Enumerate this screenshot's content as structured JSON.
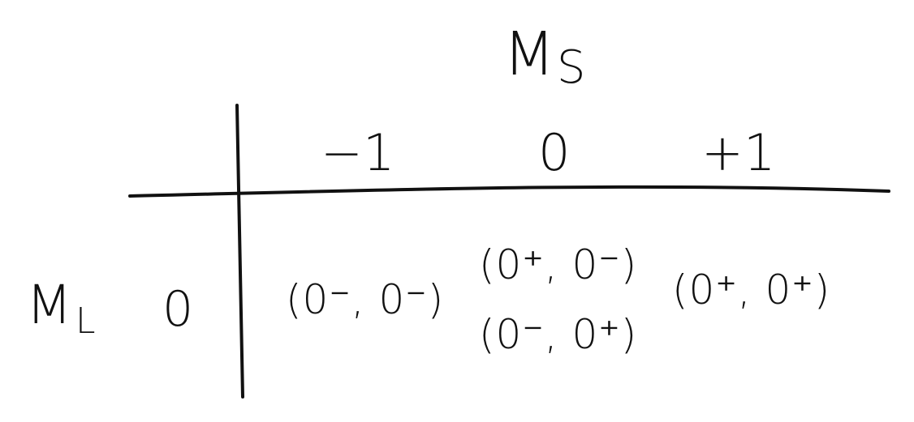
{
  "table": {
    "column_axis": {
      "symbol": "M",
      "subscript": "S"
    },
    "row_axis": {
      "symbol": "M",
      "subscript": "L",
      "value": "0"
    },
    "column_headers": [
      "−1",
      "0",
      "+1"
    ],
    "cells": {
      "col_minus1": "(0⁻, 0⁻)",
      "col_0": [
        "(0⁺, 0⁻)",
        "(0⁻, 0⁺)"
      ],
      "col_plus1": "(0⁺, 0⁺)"
    }
  },
  "colors": {
    "ink": "#111111",
    "background": "#ffffff"
  }
}
